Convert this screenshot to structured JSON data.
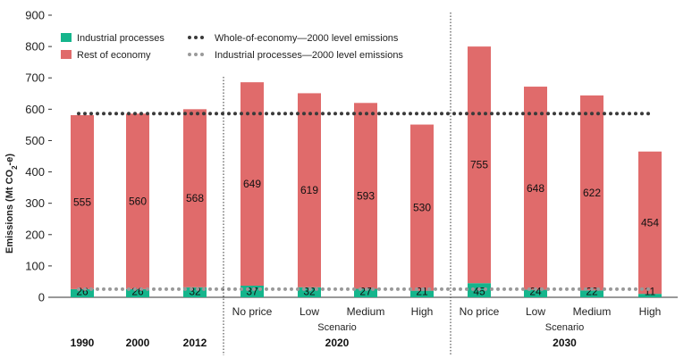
{
  "chart_data": {
    "type": "bar",
    "stacked": true,
    "ylabel_main": "Emissions (Mt CO",
    "ylabel_sub": "2",
    "ylabel_tail": "-e)",
    "ylim": [
      0,
      900
    ],
    "yticks": [
      0,
      100,
      200,
      300,
      400,
      500,
      600,
      700,
      800,
      900
    ],
    "grid": false,
    "legend_position": "top-left",
    "colors": {
      "industrial": "#15b58c",
      "rest": "#e06b6b",
      "whole_line": "#3a3a3a",
      "industrial_line": "#9a9a9a"
    },
    "series": [
      {
        "name": "Industrial processes",
        "key": "industrial",
        "values": [
          26,
          26,
          32,
          37,
          32,
          27,
          21,
          45,
          24,
          22,
          11
        ]
      },
      {
        "name": "Rest of economy",
        "key": "rest",
        "values": [
          555,
          560,
          568,
          649,
          619,
          593,
          530,
          755,
          648,
          622,
          454
        ]
      }
    ],
    "categories": [
      {
        "label": "1990",
        "group_label": true
      },
      {
        "label": "2000",
        "group_label": true
      },
      {
        "label": "2012",
        "group_label": true
      },
      {
        "label": "No price",
        "group_label": false
      },
      {
        "label": "Low",
        "group_label": false
      },
      {
        "label": "Medium",
        "group_label": false
      },
      {
        "label": "High",
        "group_label": false
      },
      {
        "label": "No price",
        "group_label": false
      },
      {
        "label": "Low",
        "group_label": false
      },
      {
        "label": "Medium",
        "group_label": false
      },
      {
        "label": "High",
        "group_label": false
      }
    ],
    "groups": [
      {
        "sublabel": "Scenario",
        "label": "2020",
        "from": 3,
        "to": 6
      },
      {
        "sublabel": "Scenario",
        "label": "2030",
        "from": 7,
        "to": 10
      }
    ],
    "reference_lines": [
      {
        "name": "Whole-of-economy—2000 level emissions",
        "value": 586,
        "color_key": "whole_line"
      },
      {
        "name": "Industrial processes—2000 level emissions",
        "value": 26,
        "color_key": "industrial_line"
      }
    ]
  }
}
